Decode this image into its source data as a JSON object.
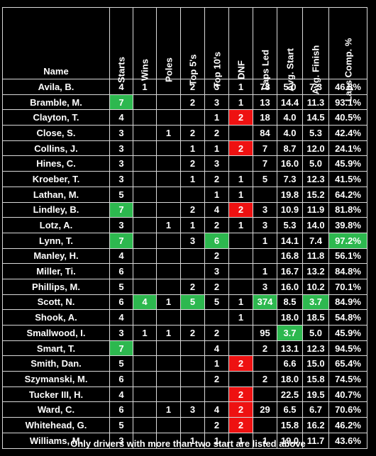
{
  "headers": [
    "Name",
    "Starts",
    "Wins",
    "Poles",
    "Top 5's",
    "Top 10's",
    "DNF",
    "Laps Led",
    "Avg. Start",
    "Avg. Finish",
    "Laps Comp. %"
  ],
  "rows": [
    [
      "Avila, B.",
      "4",
      "1",
      "",
      "2",
      "3",
      "1",
      "78",
      "5.0",
      "7.3",
      "46.8%"
    ],
    [
      "Bramble, M.",
      "7",
      "",
      "",
      "2",
      "3",
      "1",
      "13",
      "14.4",
      "11.3",
      "93.1%"
    ],
    [
      "Clayton, T.",
      "4",
      "",
      "",
      "",
      "1",
      "2",
      "18",
      "4.0",
      "14.5",
      "40.5%"
    ],
    [
      "Close, S.",
      "3",
      "",
      "1",
      "2",
      "2",
      "",
      "84",
      "4.0",
      "5.3",
      "42.4%"
    ],
    [
      "Collins, J.",
      "3",
      "",
      "",
      "1",
      "1",
      "2",
      "7",
      "8.7",
      "12.0",
      "24.1%"
    ],
    [
      "Hines, C.",
      "3",
      "",
      "",
      "2",
      "3",
      "",
      "7",
      "16.0",
      "5.0",
      "45.9%"
    ],
    [
      "Kroeber, T.",
      "3",
      "",
      "",
      "1",
      "2",
      "1",
      "5",
      "7.3",
      "12.3",
      "41.5%"
    ],
    [
      "Lathan, M.",
      "5",
      "",
      "",
      "",
      "1",
      "1",
      "",
      "19.8",
      "15.2",
      "64.2%"
    ],
    [
      "Lindley, B.",
      "7",
      "",
      "",
      "2",
      "4",
      "2",
      "3",
      "10.9",
      "11.9",
      "81.8%"
    ],
    [
      "Lotz, A.",
      "3",
      "",
      "1",
      "1",
      "2",
      "1",
      "3",
      "5.3",
      "14.0",
      "39.8%"
    ],
    [
      "Lynn, T.",
      "7",
      "",
      "",
      "3",
      "6",
      "",
      "1",
      "14.1",
      "7.4",
      "97.2%"
    ],
    [
      "Manley, H.",
      "4",
      "",
      "",
      "",
      "2",
      "",
      "",
      "16.8",
      "11.8",
      "56.1%"
    ],
    [
      "Miller, Ti.",
      "6",
      "",
      "",
      "",
      "3",
      "",
      "1",
      "16.7",
      "13.2",
      "84.8%"
    ],
    [
      "Phillips, M.",
      "5",
      "",
      "",
      "2",
      "2",
      "",
      "3",
      "16.0",
      "10.2",
      "70.1%"
    ],
    [
      "Scott, N.",
      "6",
      "4",
      "1",
      "5",
      "5",
      "1",
      "374",
      "8.5",
      "3.7",
      "84.9%"
    ],
    [
      "Shook, A.",
      "4",
      "",
      "",
      "",
      "",
      "1",
      "",
      "18.0",
      "18.5",
      "54.8%"
    ],
    [
      "Smallwood, I.",
      "3",
      "1",
      "1",
      "2",
      "2",
      "",
      "95",
      "3.7",
      "5.0",
      "45.9%"
    ],
    [
      "Smart, T.",
      "7",
      "",
      "",
      "",
      "4",
      "",
      "2",
      "13.1",
      "12.3",
      "94.5%"
    ],
    [
      "Smith, Dan.",
      "5",
      "",
      "",
      "",
      "1",
      "2",
      "",
      "6.6",
      "15.0",
      "65.4%"
    ],
    [
      "Szymanski, M.",
      "6",
      "",
      "",
      "",
      "2",
      "",
      "2",
      "18.0",
      "15.8",
      "74.5%"
    ],
    [
      "Tucker III, H.",
      "4",
      "",
      "",
      "",
      "",
      "2",
      "",
      "22.5",
      "19.5",
      "40.7%"
    ],
    [
      "Ward, C.",
      "6",
      "",
      "1",
      "3",
      "4",
      "2",
      "29",
      "6.5",
      "6.7",
      "70.6%"
    ],
    [
      "Whitehead, G.",
      "5",
      "",
      "",
      "",
      "2",
      "2",
      "",
      "15.8",
      "16.2",
      "46.2%"
    ],
    [
      "Williams, M.",
      "3",
      "",
      "",
      "1",
      "1",
      "1",
      "1",
      "19.0",
      "11.7",
      "43.6%"
    ]
  ],
  "highlights": {
    "green": [
      [
        1,
        1
      ],
      [
        8,
        1
      ],
      [
        10,
        1
      ],
      [
        17,
        1
      ],
      [
        14,
        2
      ],
      [
        14,
        4
      ],
      [
        10,
        5
      ],
      [
        14,
        7
      ],
      [
        16,
        8
      ],
      [
        14,
        9
      ],
      [
        10,
        10
      ]
    ],
    "red": [
      [
        2,
        6
      ],
      [
        4,
        6
      ],
      [
        8,
        6
      ],
      [
        18,
        6
      ],
      [
        20,
        6
      ],
      [
        21,
        6
      ],
      [
        22,
        6
      ]
    ]
  },
  "colors": {
    "background": "#000000",
    "text": "#ffffff",
    "grid": "#d9d9d9",
    "green": "#2db84f",
    "red": "#ee1111"
  },
  "footer": "Only drivers with more than two start are listed above"
}
